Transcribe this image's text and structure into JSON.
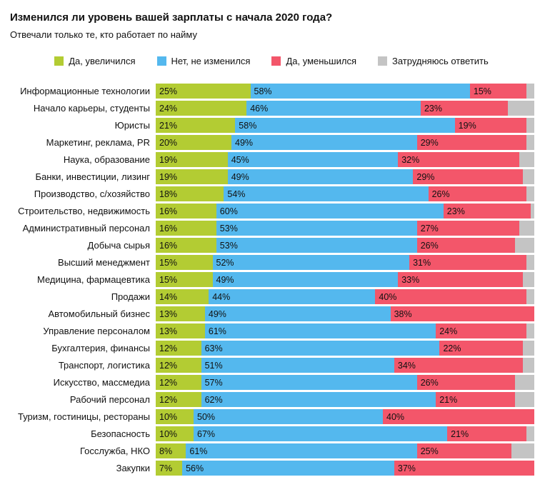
{
  "header": {
    "title": "Изменился ли уровень вашей зарплаты с начала 2020 года?",
    "subtitle": "Отвечали только те, кто работает по найму"
  },
  "chart_data": {
    "type": "bar",
    "stacked": true,
    "orientation": "horizontal",
    "unit": "%",
    "xlim": [
      0,
      100
    ],
    "legend_position": "top-center",
    "value_labels": "inside-left of each segment, hidden for last series",
    "categories": [
      "Информационные технологии",
      "Начало карьеры, студенты",
      "Юристы",
      "Маркетинг, реклама, PR",
      "Наука, образование",
      "Банки, инвестиции, лизинг",
      "Производство, с/хозяйство",
      "Строительство, недвижимость",
      "Административный персонал",
      "Добыча сырья",
      "Высший менеджмент",
      "Медицина, фармацевтика",
      "Продажи",
      "Автомобильный бизнес",
      "Управление персоналом",
      "Бухгалтерия, финансы",
      "Транспорт, логистика",
      "Искусство, массмедиа",
      "Рабочий персонал",
      "Туризм, гостиницы, рестораны",
      "Безопасность",
      "Госслужба, НКО",
      "Закупки"
    ],
    "series": [
      {
        "name": "Да, увеличился",
        "color": "#b3cc33",
        "show_labels": true,
        "values": [
          25,
          24,
          21,
          20,
          19,
          19,
          18,
          16,
          16,
          16,
          15,
          15,
          14,
          13,
          13,
          12,
          12,
          12,
          12,
          10,
          10,
          8,
          7
        ]
      },
      {
        "name": "Нет, не изменился",
        "color": "#54b8ee",
        "show_labels": true,
        "values": [
          58,
          46,
          58,
          49,
          45,
          49,
          54,
          60,
          53,
          53,
          52,
          49,
          44,
          49,
          61,
          63,
          51,
          57,
          62,
          50,
          67,
          61,
          56
        ]
      },
      {
        "name": "Да, уменьшился",
        "color": "#f3566a",
        "show_labels": true,
        "values": [
          15,
          23,
          19,
          29,
          32,
          29,
          26,
          23,
          27,
          26,
          31,
          33,
          40,
          38,
          24,
          22,
          34,
          26,
          21,
          40,
          21,
          25,
          37
        ]
      },
      {
        "name": "Затрудняюсь ответить",
        "color": "#c4c4c4",
        "show_labels": false,
        "values": [
          2,
          7,
          2,
          2,
          4,
          3,
          2,
          1,
          4,
          5,
          2,
          3,
          2,
          0,
          2,
          3,
          3,
          5,
          5,
          0,
          2,
          6,
          0
        ]
      }
    ]
  }
}
